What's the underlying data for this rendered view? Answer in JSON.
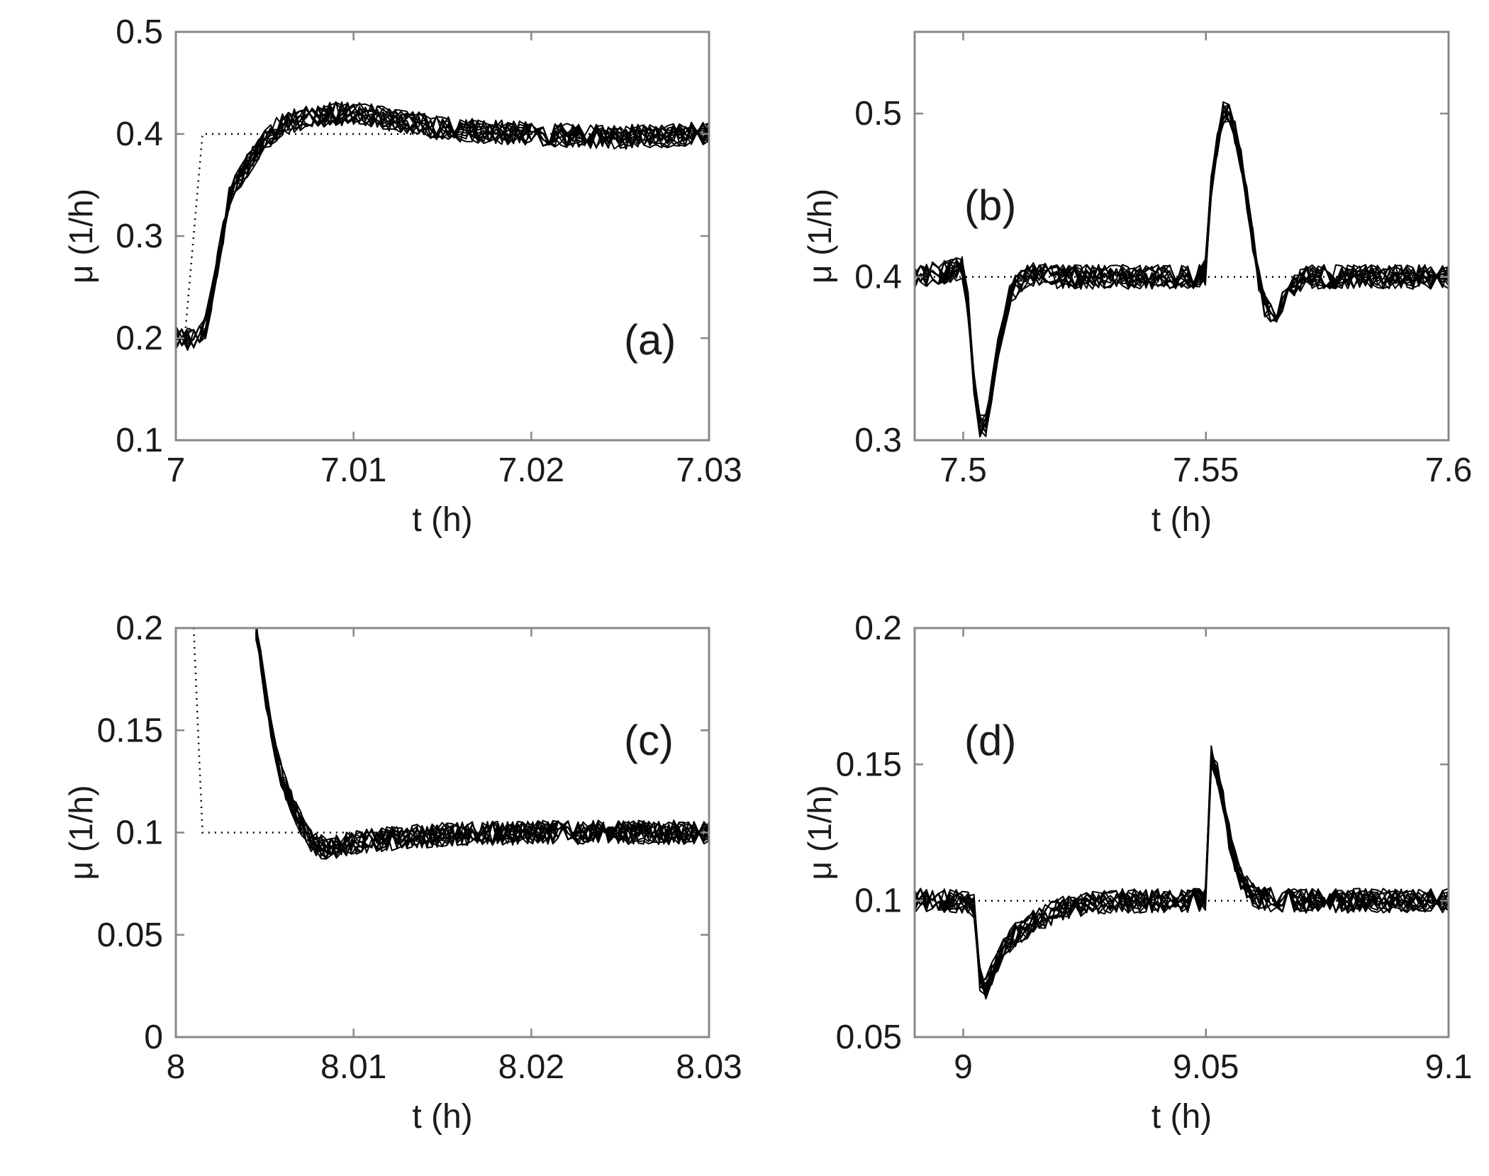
{
  "chart_data": [
    {
      "id": "a",
      "type": "line",
      "annotation": "(a)",
      "xlabel": "t (h)",
      "ylabel": "μ (1/h)",
      "xlim": [
        7,
        7.03
      ],
      "ylim": [
        0.1,
        0.5
      ],
      "xticks": [
        7,
        7.01,
        7.02,
        7.03
      ],
      "xtick_labels": [
        "7",
        "7.01",
        "7.02",
        "7.03"
      ],
      "yticks": [
        0.1,
        0.2,
        0.3,
        0.4,
        0.5
      ],
      "ytick_labels": [
        "0.1",
        "0.2",
        "0.3",
        "0.4",
        "0.5"
      ],
      "setpoint": {
        "x": [
          7,
          7.0005,
          7.0015,
          7.03
        ],
        "y": [
          0.2,
          0.2,
          0.4,
          0.4
        ]
      },
      "mean_response": {
        "x": [
          7,
          7.0015,
          7.002,
          7.003,
          7.004,
          7.005,
          7.006,
          7.007,
          7.008,
          7.009,
          7.01,
          7.012,
          7.015,
          7.02,
          7.025,
          7.03
        ],
        "y": [
          0.2,
          0.2,
          0.24,
          0.34,
          0.37,
          0.395,
          0.41,
          0.415,
          0.418,
          0.42,
          0.42,
          0.415,
          0.405,
          0.4,
          0.397,
          0.4
        ]
      },
      "n_traces": 12
    },
    {
      "id": "b",
      "type": "line",
      "annotation": "(b)",
      "xlabel": "t (h)",
      "ylabel": "μ (1/h)",
      "xlim": [
        7.49,
        7.6
      ],
      "ylim": [
        0.3,
        0.55
      ],
      "xticks": [
        7.5,
        7.55,
        7.6
      ],
      "xtick_labels": [
        "7.5",
        "7.55",
        "7.6"
      ],
      "yticks": [
        0.3,
        0.4,
        0.5
      ],
      "ytick_labels": [
        "0.3",
        "0.4",
        "0.5"
      ],
      "setpoint": {
        "x": [
          7.49,
          7.6
        ],
        "y": [
          0.4,
          0.4
        ]
      },
      "mean_response": {
        "x": [
          7.49,
          7.5,
          7.501,
          7.502,
          7.503,
          7.504,
          7.505,
          7.506,
          7.507,
          7.508,
          7.509,
          7.51,
          7.512,
          7.515,
          7.52,
          7.54,
          7.55,
          7.551,
          7.553,
          7.554,
          7.555,
          7.557,
          7.559,
          7.561,
          7.5625,
          7.564,
          7.566,
          7.57,
          7.6
        ],
        "y": [
          0.4,
          0.405,
          0.39,
          0.35,
          0.315,
          0.305,
          0.31,
          0.33,
          0.35,
          0.365,
          0.38,
          0.39,
          0.398,
          0.402,
          0.4,
          0.4,
          0.4,
          0.45,
          0.49,
          0.505,
          0.5,
          0.48,
          0.44,
          0.4,
          0.38,
          0.375,
          0.385,
          0.4,
          0.4
        ]
      },
      "n_traces": 12
    },
    {
      "id": "c",
      "type": "line",
      "annotation": "(c)",
      "xlabel": "t (h)",
      "ylabel": "μ (1/h)",
      "xlim": [
        8,
        8.03
      ],
      "ylim": [
        0,
        0.2
      ],
      "xticks": [
        8,
        8.01,
        8.02,
        8.03
      ],
      "xtick_labels": [
        "8",
        "8.01",
        "8.02",
        "8.03"
      ],
      "yticks": [
        0,
        0.05,
        0.1,
        0.15,
        0.2
      ],
      "ytick_labels": [
        "0",
        "0.05",
        "0.1",
        "0.15",
        "0.2"
      ],
      "setpoint": {
        "x": [
          8.001,
          8.001,
          8.0015,
          8.03
        ],
        "y": [
          0.2,
          0.2,
          0.1,
          0.1
        ]
      },
      "mean_response": {
        "x": [
          8.0045,
          8.005,
          8.0055,
          8.006,
          8.0065,
          8.007,
          8.0075,
          8.008,
          8.009,
          8.01,
          8.012,
          8.015,
          8.02,
          8.025,
          8.03
        ],
        "y": [
          0.2,
          0.17,
          0.145,
          0.125,
          0.115,
          0.105,
          0.097,
          0.093,
          0.093,
          0.095,
          0.097,
          0.099,
          0.1,
          0.1,
          0.1
        ]
      },
      "n_traces": 12
    },
    {
      "id": "d",
      "type": "line",
      "annotation": "(d)",
      "xlabel": "t (h)",
      "ylabel": "μ (1/h)",
      "xlim": [
        8.99,
        9.1
      ],
      "ylim": [
        0.05,
        0.2
      ],
      "xticks": [
        9,
        9.05,
        9.1
      ],
      "xtick_labels": [
        "9",
        "9.05",
        "9.1"
      ],
      "yticks": [
        0.05,
        0.1,
        0.15,
        0.2
      ],
      "ytick_labels": [
        "0.05",
        "0.1",
        "0.15",
        "0.2"
      ],
      "setpoint": {
        "x": [
          8.99,
          9.1
        ],
        "y": [
          0.1,
          0.1
        ]
      },
      "mean_response": {
        "x": [
          8.99,
          9.002,
          9.0035,
          9.004,
          9.006,
          9.01,
          9.015,
          9.02,
          9.03,
          9.05,
          9.051,
          9.053,
          9.055,
          9.057,
          9.06,
          9.065,
          9.1
        ],
        "y": [
          0.1,
          0.1,
          0.067,
          0.066,
          0.075,
          0.087,
          0.093,
          0.097,
          0.1,
          0.1,
          0.155,
          0.14,
          0.12,
          0.108,
          0.101,
          0.1,
          0.1
        ]
      },
      "n_traces": 12
    }
  ]
}
